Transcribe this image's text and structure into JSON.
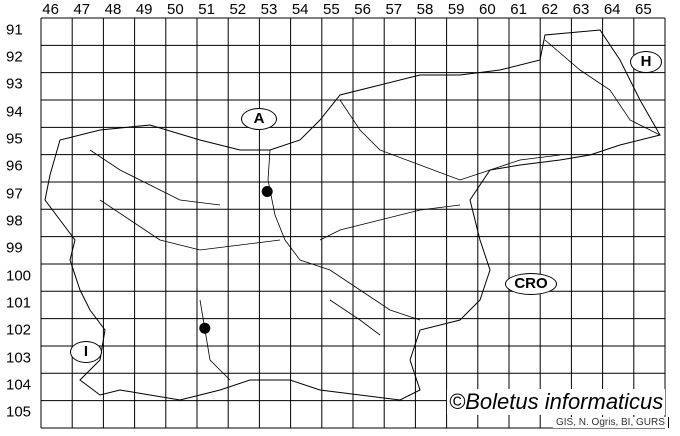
{
  "grid": {
    "columns": [
      "46",
      "47",
      "48",
      "49",
      "50",
      "51",
      "52",
      "53",
      "54",
      "55",
      "56",
      "57",
      "58",
      "59",
      "60",
      "61",
      "62",
      "63",
      "64",
      "65"
    ],
    "rows": [
      "91",
      "92",
      "93",
      "94",
      "95",
      "96",
      "97",
      "98",
      "99",
      "100",
      "101",
      "102",
      "103",
      "104",
      "105"
    ]
  },
  "countries": [
    {
      "label": "A",
      "name": "austria-label"
    },
    {
      "label": "H",
      "name": "hungary-label"
    },
    {
      "label": "CRO",
      "name": "croatia-label"
    },
    {
      "label": "I",
      "name": "italy-label"
    }
  ],
  "records": [
    {
      "column": "53",
      "row": "97"
    },
    {
      "column": "51",
      "row": "102"
    }
  ],
  "colors": {
    "line": "#000000",
    "record_dot": "#000000",
    "background": "#ffffff"
  },
  "copyright": "©Boletus informaticus",
  "credit": "GIS, N. Ogris, BI, GURS"
}
